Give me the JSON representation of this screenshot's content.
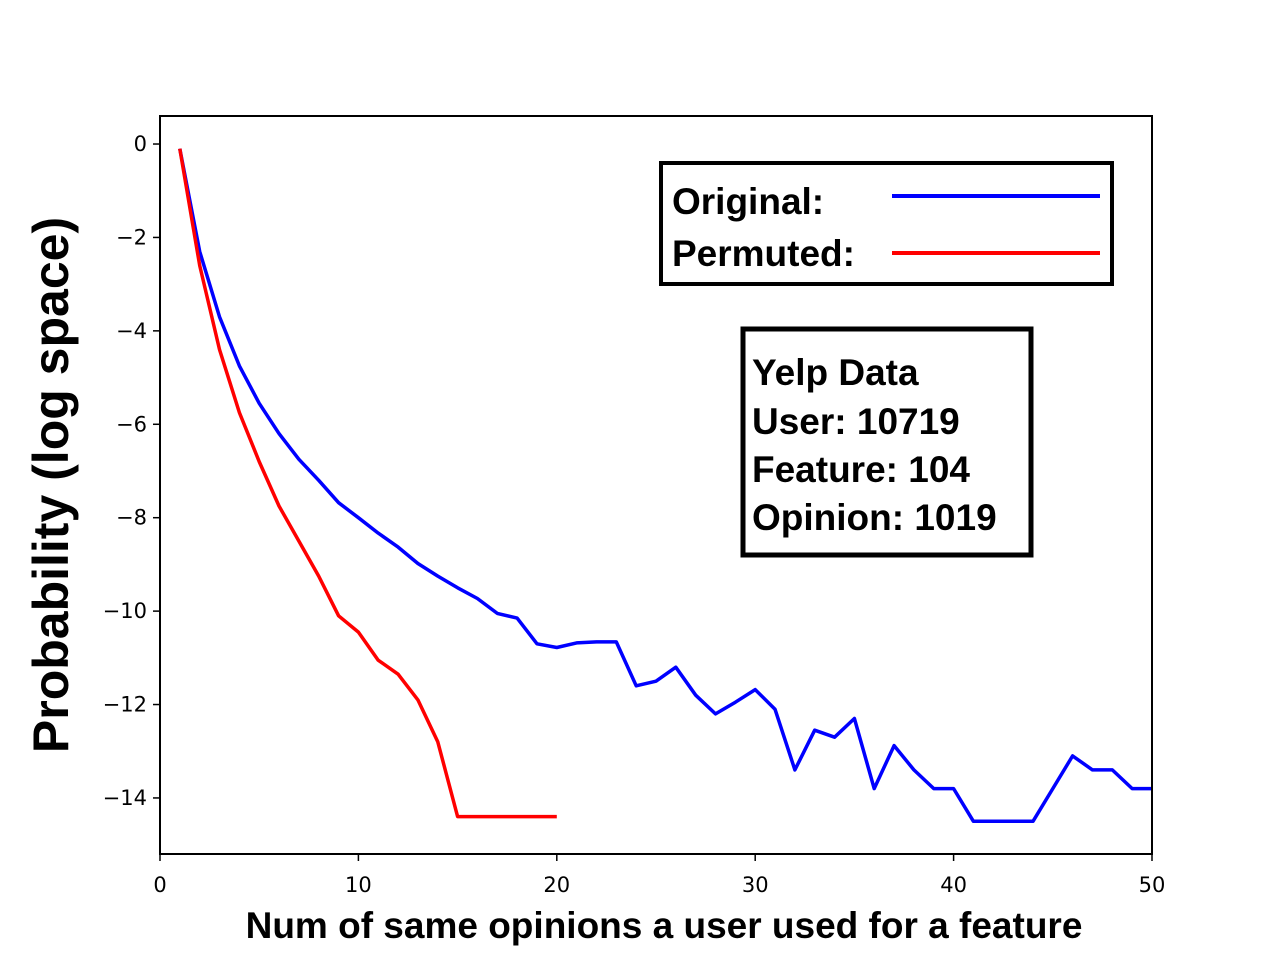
{
  "chart_data": {
    "type": "line",
    "xlabel": "Num of same opinions a user used for a feature",
    "ylabel": "Probability (log space)",
    "xlim": [
      0,
      50
    ],
    "ylim": [
      -15.2,
      0.6
    ],
    "xticks": [
      0,
      10,
      20,
      30,
      40,
      50
    ],
    "yticks": [
      0,
      -2,
      -4,
      -6,
      -8,
      -10,
      -12,
      -14
    ],
    "ytick_labels": [
      "0",
      "−2",
      "−4",
      "−6",
      "−8",
      "−10",
      "−12",
      "−14"
    ],
    "grid": false,
    "legend": {
      "placement": "top-right",
      "entries": [
        "Original:",
        "Permuted:"
      ]
    },
    "series": [
      {
        "name": "Original:",
        "color": "#0000ff",
        "x": [
          1,
          2,
          3,
          4,
          5,
          6,
          7,
          8,
          9,
          10,
          11,
          12,
          13,
          14,
          15,
          16,
          17,
          18,
          19,
          20,
          21,
          22,
          23,
          24,
          25,
          26,
          27,
          28,
          29,
          30,
          31,
          32,
          33,
          34,
          35,
          36,
          37,
          38,
          39,
          40,
          41,
          42,
          43,
          44,
          45,
          46,
          47,
          48,
          49,
          50
        ],
        "y": [
          -0.1,
          -2.3,
          -3.7,
          -4.75,
          -5.55,
          -6.2,
          -6.75,
          -7.2,
          -7.68,
          -8.0,
          -8.33,
          -8.63,
          -8.98,
          -9.25,
          -9.5,
          -9.73,
          -10.05,
          -10.15,
          -10.7,
          -10.78,
          -10.68,
          -10.66,
          -10.66,
          -11.6,
          -11.5,
          -11.2,
          -11.8,
          -12.2,
          -11.95,
          -11.68,
          -12.1,
          -13.4,
          -12.55,
          -12.7,
          -12.3,
          -13.8,
          -12.88,
          -13.4,
          -13.8,
          -13.8,
          -14.5,
          -14.5,
          -14.5,
          -14.5,
          -13.8,
          -13.1,
          -13.4,
          -13.4,
          -13.8,
          -13.8
        ]
      },
      {
        "name": "Permuted:",
        "color": "#ff0000",
        "x": [
          1,
          2,
          3,
          4,
          5,
          6,
          7,
          8,
          9,
          10,
          11,
          12,
          13,
          14,
          15,
          16,
          17,
          18,
          19,
          20
        ],
        "y": [
          -0.1,
          -2.6,
          -4.4,
          -5.75,
          -6.8,
          -7.75,
          -8.5,
          -9.25,
          -10.1,
          -10.45,
          -11.05,
          -11.35,
          -11.9,
          -12.8,
          -14.4,
          -14.4,
          -14.4,
          -14.4,
          -14.4,
          -14.4
        ]
      }
    ],
    "annotation": [
      "Yelp Data",
      "User: 10719",
      "Feature: 104",
      "Opinion: 1019"
    ]
  }
}
